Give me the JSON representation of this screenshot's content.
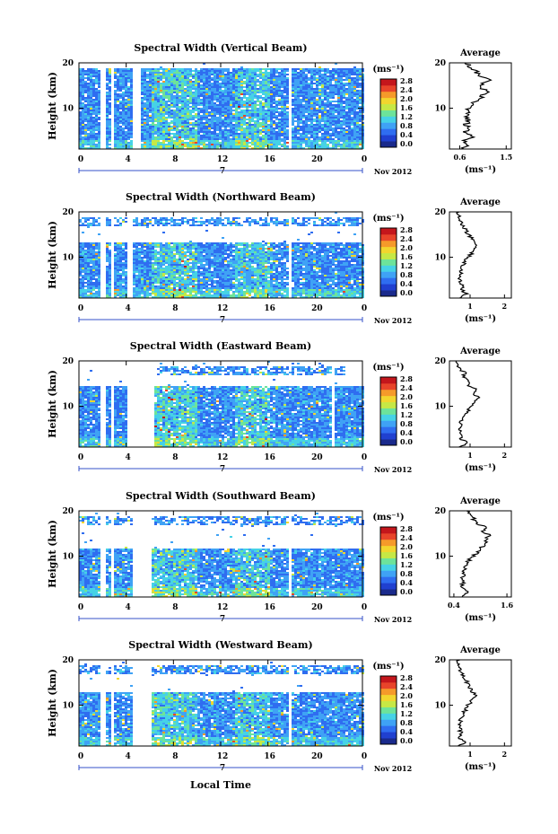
{
  "figure": {
    "xlabel": "Local Time",
    "ylabel": "Height (km)",
    "date_label": "Nov 2012",
    "day_marker": "7",
    "colorbar_unit": "(ms⁻¹)",
    "colorbar_ticks": [
      "0.0",
      "0.4",
      "0.8",
      "1.2",
      "1.6",
      "2.0",
      "2.4",
      "2.8"
    ],
    "avg_title": "Average",
    "avg_xlabel": "(ms⁻¹)",
    "colormap": [
      "#1a2a8c",
      "#2040d0",
      "#2f6df0",
      "#3fa2f5",
      "#46d2e6",
      "#6de39a",
      "#c6e845",
      "#f2d62e",
      "#f59a2a",
      "#e8442a",
      "#c4161c"
    ]
  },
  "chart_data": [
    {
      "type": "heatmap",
      "title": "Spectral Width (Vertical Beam)",
      "x_ticks": [
        "0",
        "4",
        "8",
        "12",
        "16",
        "20",
        "0"
      ],
      "y_ticks": [
        "20",
        "10"
      ],
      "xlim": [
        0,
        24
      ],
      "ylim": [
        1,
        20
      ],
      "data_gaps_hours": [
        [
          1.8,
          2.2
        ],
        [
          2.6,
          2.9
        ],
        [
          4.5,
          5.1
        ],
        [
          17.6,
          17.9
        ]
      ],
      "top_hours": [
        [
          0,
          24
        ]
      ],
      "cover_h": 19,
      "avg_x_ticks": [
        "0.6",
        "1.5"
      ],
      "avg_xlim": [
        0.4,
        1.6
      ],
      "avg_profile": [
        0.62,
        0.75,
        0.7,
        0.85,
        0.68,
        0.8,
        0.72,
        0.78,
        0.72,
        0.74,
        0.76,
        0.82,
        0.95,
        1.05,
        1.12,
        1.0,
        1.05,
        1.18,
        0.98,
        0.9,
        0.8,
        0.72
      ]
    },
    {
      "type": "heatmap",
      "title": "Spectral Width (Northward Beam)",
      "x_ticks": [
        "0",
        "4",
        "8",
        "12",
        "16",
        "20",
        "0"
      ],
      "y_ticks": [
        "20",
        "10"
      ],
      "xlim": [
        0,
        24
      ],
      "ylim": [
        1,
        20
      ],
      "data_gaps_hours": [
        [
          1.8,
          2.2
        ],
        [
          2.6,
          2.9
        ],
        [
          4.0,
          4.5
        ],
        [
          17.6,
          17.9
        ]
      ],
      "top_hours": [
        [
          0,
          24
        ]
      ],
      "cover_h": 13.5,
      "avg_x_ticks": [
        "1",
        "2"
      ],
      "avg_xlim": [
        0.4,
        2.2
      ],
      "avg_profile": [
        0.7,
        0.9,
        0.75,
        0.8,
        0.72,
        0.68,
        0.72,
        0.75,
        0.8,
        0.85,
        0.95,
        1.05,
        1.15,
        1.2,
        1.1,
        1.0,
        0.9,
        0.85,
        0.75,
        0.7,
        0.68,
        0.65
      ]
    },
    {
      "type": "heatmap",
      "title": "Spectral Width (Eastward Beam)",
      "x_ticks": [
        "0",
        "4",
        "8",
        "12",
        "16",
        "20",
        "0"
      ],
      "y_ticks": [
        "20",
        "10"
      ],
      "xlim": [
        0,
        24
      ],
      "ylim": [
        1,
        20
      ],
      "data_gaps_hours": [
        [
          1.8,
          2.2
        ],
        [
          2.6,
          2.9
        ],
        [
          4.0,
          6.3
        ],
        [
          21.2,
          21.5
        ]
      ],
      "top_hours": [
        [
          6.5,
          22.5
        ]
      ],
      "cover_h": 14.5,
      "avg_x_ticks": [
        "1",
        "2"
      ],
      "avg_xlim": [
        0.4,
        2.2
      ],
      "avg_profile": [
        0.7,
        0.95,
        0.72,
        0.78,
        0.7,
        0.72,
        0.74,
        0.8,
        0.88,
        0.95,
        1.05,
        1.15,
        1.25,
        1.05,
        1.2,
        0.9,
        1.0,
        0.8,
        0.85,
        0.7,
        0.65,
        0.6
      ]
    },
    {
      "type": "heatmap",
      "title": "Spectral Width (Southward Beam)",
      "x_ticks": [
        "0",
        "4",
        "8",
        "12",
        "16",
        "20",
        "0"
      ],
      "y_ticks": [
        "20",
        "10"
      ],
      "xlim": [
        0,
        24
      ],
      "ylim": [
        1,
        20
      ],
      "data_gaps_hours": [
        [
          1.8,
          2.2
        ],
        [
          2.6,
          2.9
        ],
        [
          4.5,
          6.0
        ],
        [
          17.6,
          17.9
        ]
      ],
      "top_hours": [
        [
          0,
          24
        ]
      ],
      "cover_h": 12,
      "avg_x_ticks": [
        "0.4",
        "1.6"
      ],
      "avg_xlim": [
        0.3,
        1.7
      ],
      "avg_profile": [
        0.55,
        0.7,
        0.6,
        0.62,
        0.58,
        0.6,
        0.62,
        0.65,
        0.7,
        0.75,
        0.85,
        0.95,
        1.0,
        1.1,
        1.15,
        1.2,
        1.05,
        1.1,
        0.9,
        0.85,
        0.8,
        0.72
      ]
    },
    {
      "type": "heatmap",
      "title": "Spectral Width (Westward Beam)",
      "x_ticks": [
        "0",
        "4",
        "8",
        "12",
        "16",
        "20",
        "0"
      ],
      "y_ticks": [
        "20",
        "10"
      ],
      "xlim": [
        0,
        24
      ],
      "ylim": [
        1,
        20
      ],
      "data_gaps_hours": [
        [
          1.8,
          2.2
        ],
        [
          2.6,
          2.9
        ],
        [
          4.5,
          6.0
        ],
        [
          17.6,
          17.9
        ]
      ],
      "top_hours": [
        [
          0,
          24
        ]
      ],
      "cover_h": 13,
      "avg_x_ticks": [
        "1",
        "2"
      ],
      "avg_xlim": [
        0.4,
        2.2
      ],
      "avg_profile": [
        0.65,
        0.85,
        0.7,
        0.74,
        0.7,
        0.68,
        0.72,
        0.75,
        0.8,
        0.88,
        0.95,
        1.05,
        1.2,
        1.1,
        1.0,
        0.95,
        0.88,
        0.8,
        0.75,
        0.7,
        0.68,
        0.65
      ]
    }
  ]
}
